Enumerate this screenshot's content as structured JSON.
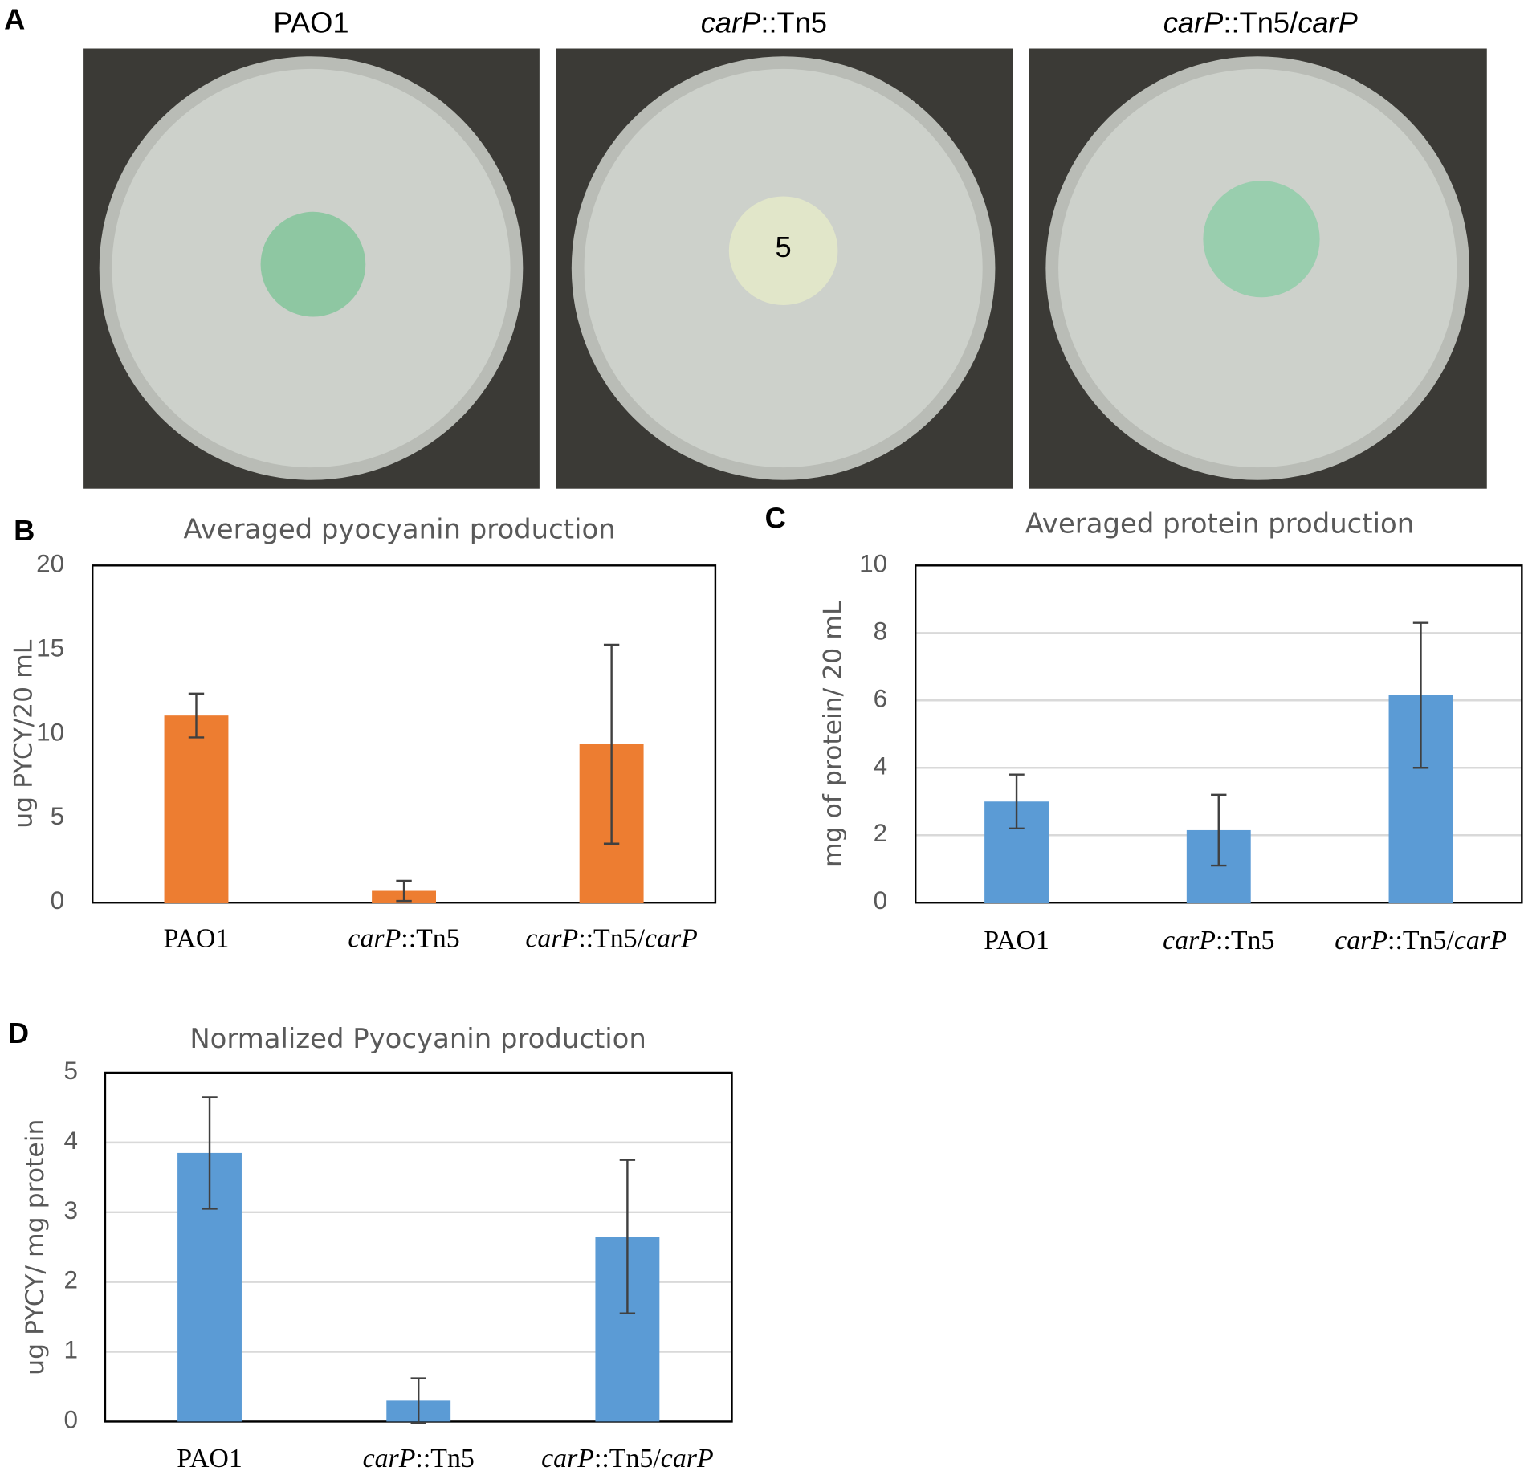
{
  "photo_panel": {
    "panel": "A",
    "titles": [
      "PAO1",
      "carP::Tn5",
      "carP::Tn5/carP"
    ],
    "annotation": "5"
  },
  "chart_data": [
    {
      "type": "bar",
      "panel": "B",
      "title": "Averaged pyocyanin production",
      "ylabel": "ug PYCY/20 mL",
      "categories": [
        "PAO1",
        "carP::Tn5",
        "carP::Tn5/carP"
      ],
      "values": [
        11.1,
        0.7,
        9.4
      ],
      "errors": [
        1.3,
        0.6,
        5.9
      ],
      "color": "#ed7d31",
      "ylim": [
        0,
        20
      ],
      "yticks": [
        0,
        5,
        10,
        15,
        20
      ],
      "grid": false
    },
    {
      "type": "bar",
      "panel": "C",
      "title": "Averaged protein production",
      "ylabel": "mg of protein/ 20 mL",
      "categories": [
        "PAO1",
        "carP::Tn5",
        "carP::Tn5/carP"
      ],
      "values": [
        3.0,
        2.15,
        6.15
      ],
      "errors": [
        0.8,
        1.05,
        2.15
      ],
      "color": "#5b9bd5",
      "ylim": [
        0,
        10
      ],
      "yticks": [
        0,
        2,
        4,
        6,
        8,
        10
      ],
      "grid": true
    },
    {
      "type": "bar",
      "panel": "D",
      "title": "Normalized Pyocyanin production",
      "ylabel": "ug PYCY/ mg protein",
      "categories": [
        "PAO1",
        "carP::Tn5",
        "carP::Tn5/carP"
      ],
      "values": [
        3.85,
        0.3,
        2.65
      ],
      "errors": [
        0.8,
        0.32,
        1.1
      ],
      "color": "#5b9bd5",
      "ylim": [
        0,
        5
      ],
      "yticks": [
        0,
        1,
        2,
        3,
        4,
        5
      ],
      "grid": true
    }
  ]
}
